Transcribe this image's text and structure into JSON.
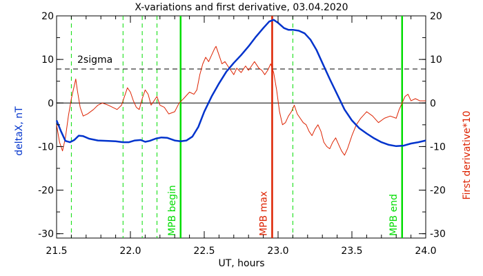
{
  "chart_data": {
    "type": "line",
    "title": "X-variations and first derivative, 03.04.2020",
    "xlabel": "UT, hours",
    "ylabel_left": "deltaX, nT",
    "ylabel_right": "First derivative*10",
    "xlim": [
      21.5,
      24.0
    ],
    "ylim_left": [
      -31,
      20
    ],
    "ylim_right": [
      -31,
      20
    ],
    "x_ticks": [
      21.5,
      22.0,
      22.5,
      23.0,
      23.5,
      24.0
    ],
    "x_tick_labels": [
      "21.5",
      "22.0",
      "22.5",
      "23.0",
      "23.5",
      "24.0"
    ],
    "y_ticks": [
      20,
      10,
      0,
      -10,
      -20,
      -30
    ],
    "y_tick_labels": [
      "20",
      "10",
      "0",
      "-10",
      "-20",
      "-30"
    ],
    "grid": false,
    "colors": {
      "deltaX": "#0033cc",
      "derivative": "#dd2200",
      "mpb": "#00dd00",
      "mpb_max": "#dd2200",
      "axes": "#000000"
    },
    "sigma": {
      "label": "2sigma",
      "value": 7.8
    },
    "zero_line": 0,
    "vlines_dashed": [
      21.6,
      21.95,
      22.08,
      22.18,
      23.1
    ],
    "markers": [
      {
        "label": "MPB begin",
        "x": 22.34,
        "kind": "mpb"
      },
      {
        "label": "MPB max",
        "x": 22.96,
        "kind": "max"
      },
      {
        "label": "MPB end",
        "x": 23.84,
        "kind": "mpb"
      }
    ],
    "series": [
      {
        "key": "deltaX",
        "x": [
          21.5,
          21.53,
          21.56,
          21.59,
          21.62,
          21.65,
          21.68,
          21.72,
          21.78,
          21.85,
          21.9,
          21.95,
          21.99,
          22.03,
          22.07,
          22.1,
          22.13,
          22.17,
          22.21,
          22.25,
          22.3,
          22.34,
          22.38,
          22.42,
          22.46,
          22.5,
          22.55,
          22.6,
          22.65,
          22.7,
          22.75,
          22.8,
          22.85,
          22.9,
          22.94,
          22.97,
          23.0,
          23.04,
          23.07,
          23.1,
          23.14,
          23.18,
          23.22,
          23.26,
          23.3,
          23.35,
          23.4,
          23.45,
          23.5,
          23.55,
          23.6,
          23.65,
          23.7,
          23.75,
          23.8,
          23.85,
          23.9,
          23.95,
          24.0
        ],
        "y": [
          -4,
          -6.5,
          -8.7,
          -9.0,
          -8.5,
          -7.5,
          -7.6,
          -8.2,
          -8.6,
          -8.7,
          -8.8,
          -9.0,
          -9.0,
          -8.6,
          -8.5,
          -8.9,
          -8.7,
          -8.2,
          -7.9,
          -8.0,
          -8.6,
          -8.8,
          -8.6,
          -7.7,
          -5.5,
          -2.0,
          1.5,
          4.5,
          7.2,
          9.2,
          11.0,
          13.0,
          15.2,
          17.2,
          18.7,
          19.1,
          18.4,
          17.2,
          16.8,
          16.8,
          16.6,
          16.0,
          14.5,
          12.2,
          9.2,
          5.5,
          2.0,
          -1.5,
          -4.0,
          -5.8,
          -7.0,
          -8.1,
          -9.0,
          -9.6,
          -9.9,
          -9.8,
          -9.3,
          -9.0,
          -8.6
        ]
      },
      {
        "key": "derivative",
        "x": [
          21.5,
          21.52,
          21.54,
          21.56,
          21.58,
          21.6,
          21.61,
          21.62,
          21.63,
          21.64,
          21.66,
          21.68,
          21.71,
          21.75,
          21.78,
          21.81,
          21.85,
          21.88,
          21.91,
          21.94,
          21.96,
          21.98,
          22.0,
          22.02,
          22.04,
          22.06,
          22.08,
          22.1,
          22.12,
          22.14,
          22.16,
          22.18,
          22.2,
          22.23,
          22.26,
          22.3,
          22.33,
          22.36,
          22.4,
          22.43,
          22.45,
          22.47,
          22.49,
          22.51,
          22.53,
          22.55,
          22.57,
          22.58,
          22.6,
          22.62,
          22.64,
          22.66,
          22.68,
          22.7,
          22.72,
          22.75,
          22.78,
          22.8,
          22.82,
          22.84,
          22.87,
          22.89,
          22.91,
          22.93,
          22.95,
          22.97,
          22.99,
          23.01,
          23.03,
          23.05,
          23.07,
          23.09,
          23.11,
          23.13,
          23.15,
          23.17,
          23.19,
          23.21,
          23.23,
          23.25,
          23.27,
          23.29,
          23.31,
          23.33,
          23.35,
          23.37,
          23.39,
          23.41,
          23.43,
          23.45,
          23.47,
          23.5,
          23.53,
          23.56,
          23.6,
          23.64,
          23.68,
          23.72,
          23.76,
          23.8,
          23.82,
          23.84,
          23.86,
          23.88,
          23.9,
          23.93,
          23.96,
          24.0
        ],
        "y": [
          -5.0,
          -9.0,
          -11.0,
          -8.0,
          -3.0,
          1.0,
          2.5,
          4.0,
          5.5,
          3.0,
          -1.0,
          -3.0,
          -2.5,
          -1.5,
          -0.5,
          0.0,
          -0.5,
          -1.0,
          -1.5,
          -0.5,
          1.5,
          3.5,
          2.5,
          0.5,
          -1.0,
          -1.5,
          1.0,
          3.0,
          2.0,
          -0.5,
          0.5,
          1.5,
          -0.5,
          -1.0,
          -2.5,
          -2.0,
          0.0,
          1.0,
          2.5,
          2.0,
          3.0,
          6.5,
          9.0,
          10.5,
          9.5,
          11.0,
          12.5,
          13.0,
          11.0,
          9.0,
          9.5,
          8.5,
          7.5,
          6.5,
          8.0,
          7.0,
          8.5,
          7.5,
          8.5,
          9.5,
          8.0,
          7.5,
          6.5,
          7.5,
          9.0,
          7.0,
          3.0,
          -2.0,
          -5.0,
          -4.5,
          -3.0,
          -2.0,
          -0.5,
          -2.5,
          -3.5,
          -4.5,
          -5.0,
          -6.5,
          -7.5,
          -6.0,
          -5.0,
          -6.5,
          -9.0,
          -10.0,
          -10.5,
          -9.0,
          -8.0,
          -9.5,
          -11.0,
          -12.0,
          -10.5,
          -7.5,
          -5.0,
          -3.5,
          -2.0,
          -3.0,
          -4.5,
          -3.5,
          -3.0,
          -3.5,
          -1.5,
          0.0,
          1.5,
          2.0,
          0.5,
          1.0,
          0.5,
          0.5
        ]
      }
    ]
  }
}
